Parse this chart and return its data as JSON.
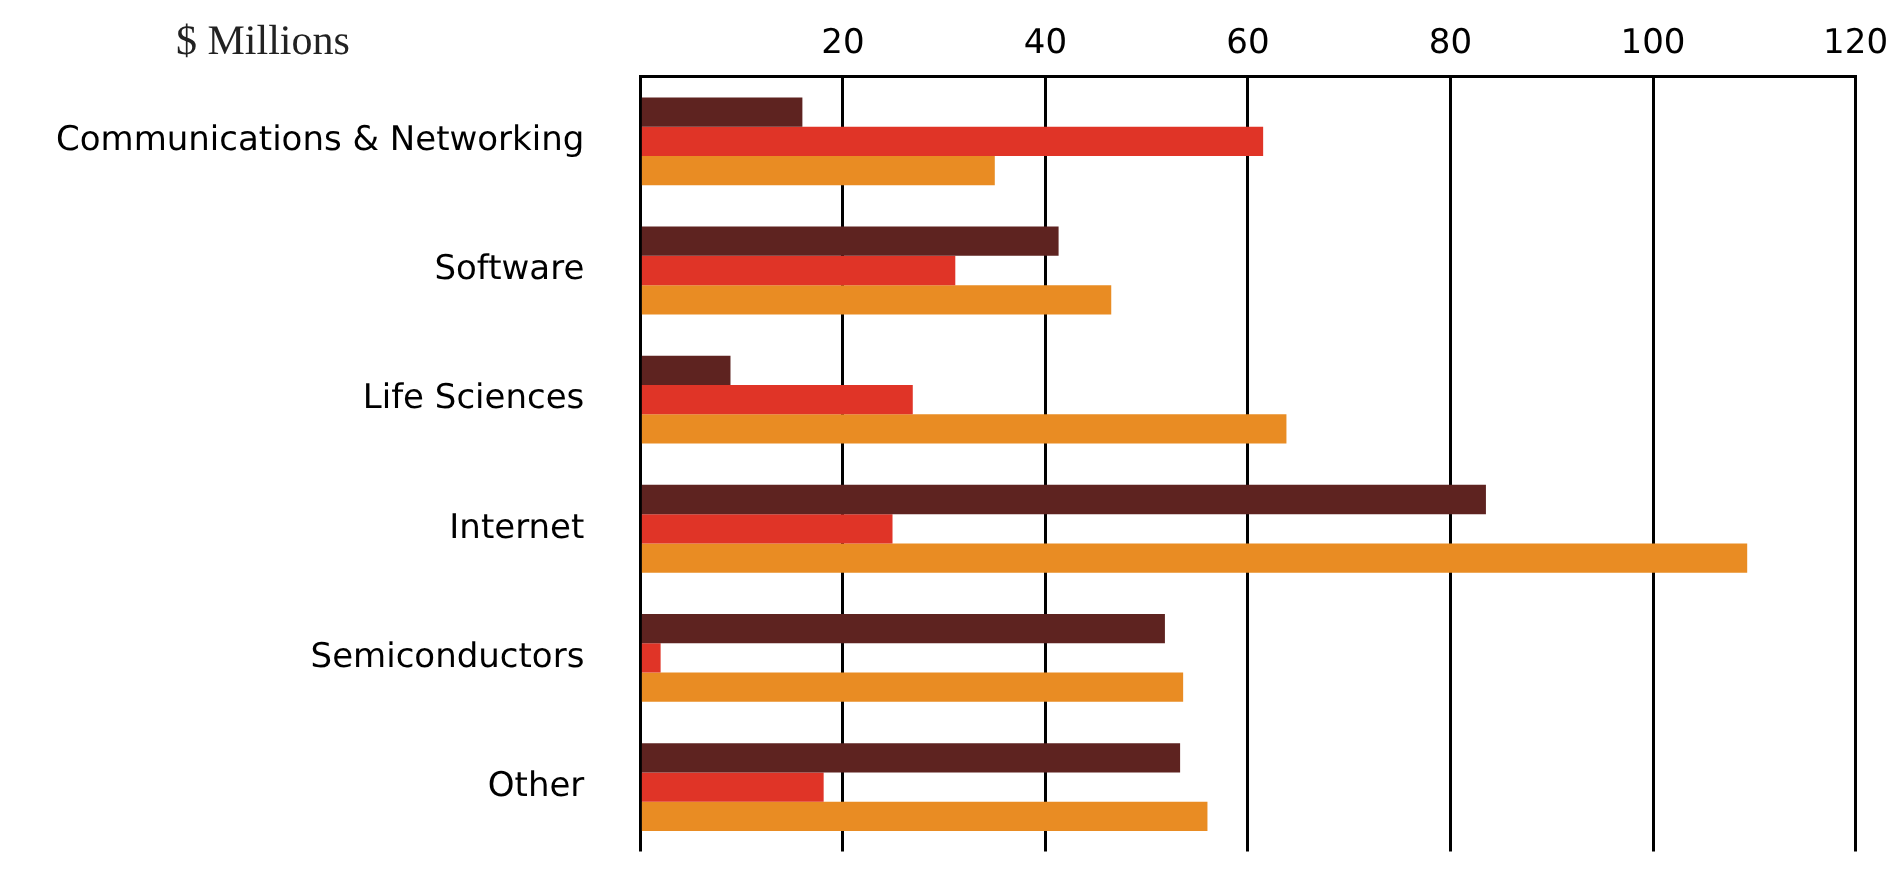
{
  "chart_data": {
    "type": "bar",
    "orientation": "horizontal",
    "title": "$ Millions",
    "categories": [
      "Communications & Networking",
      "Software",
      "Life Sciences",
      "Internet",
      "Semiconductors",
      "Other"
    ],
    "series": [
      {
        "color": "#5e2320",
        "values": [
          16,
          41.3,
          8.9,
          83.5,
          51.8,
          53.3
        ]
      },
      {
        "color": "#e03427",
        "values": [
          61.5,
          31.1,
          26.9,
          24.9,
          2,
          18.1
        ]
      },
      {
        "color": "#e98c23",
        "values": [
          35,
          46.5,
          63.8,
          109.3,
          53.6,
          56
        ]
      }
    ],
    "xlim": [
      0,
      120
    ],
    "xticks": [
      {
        "value": 0,
        "label": null
      },
      20,
      40,
      60,
      80,
      100,
      120
    ],
    "grid": "x",
    "legend": false
  }
}
